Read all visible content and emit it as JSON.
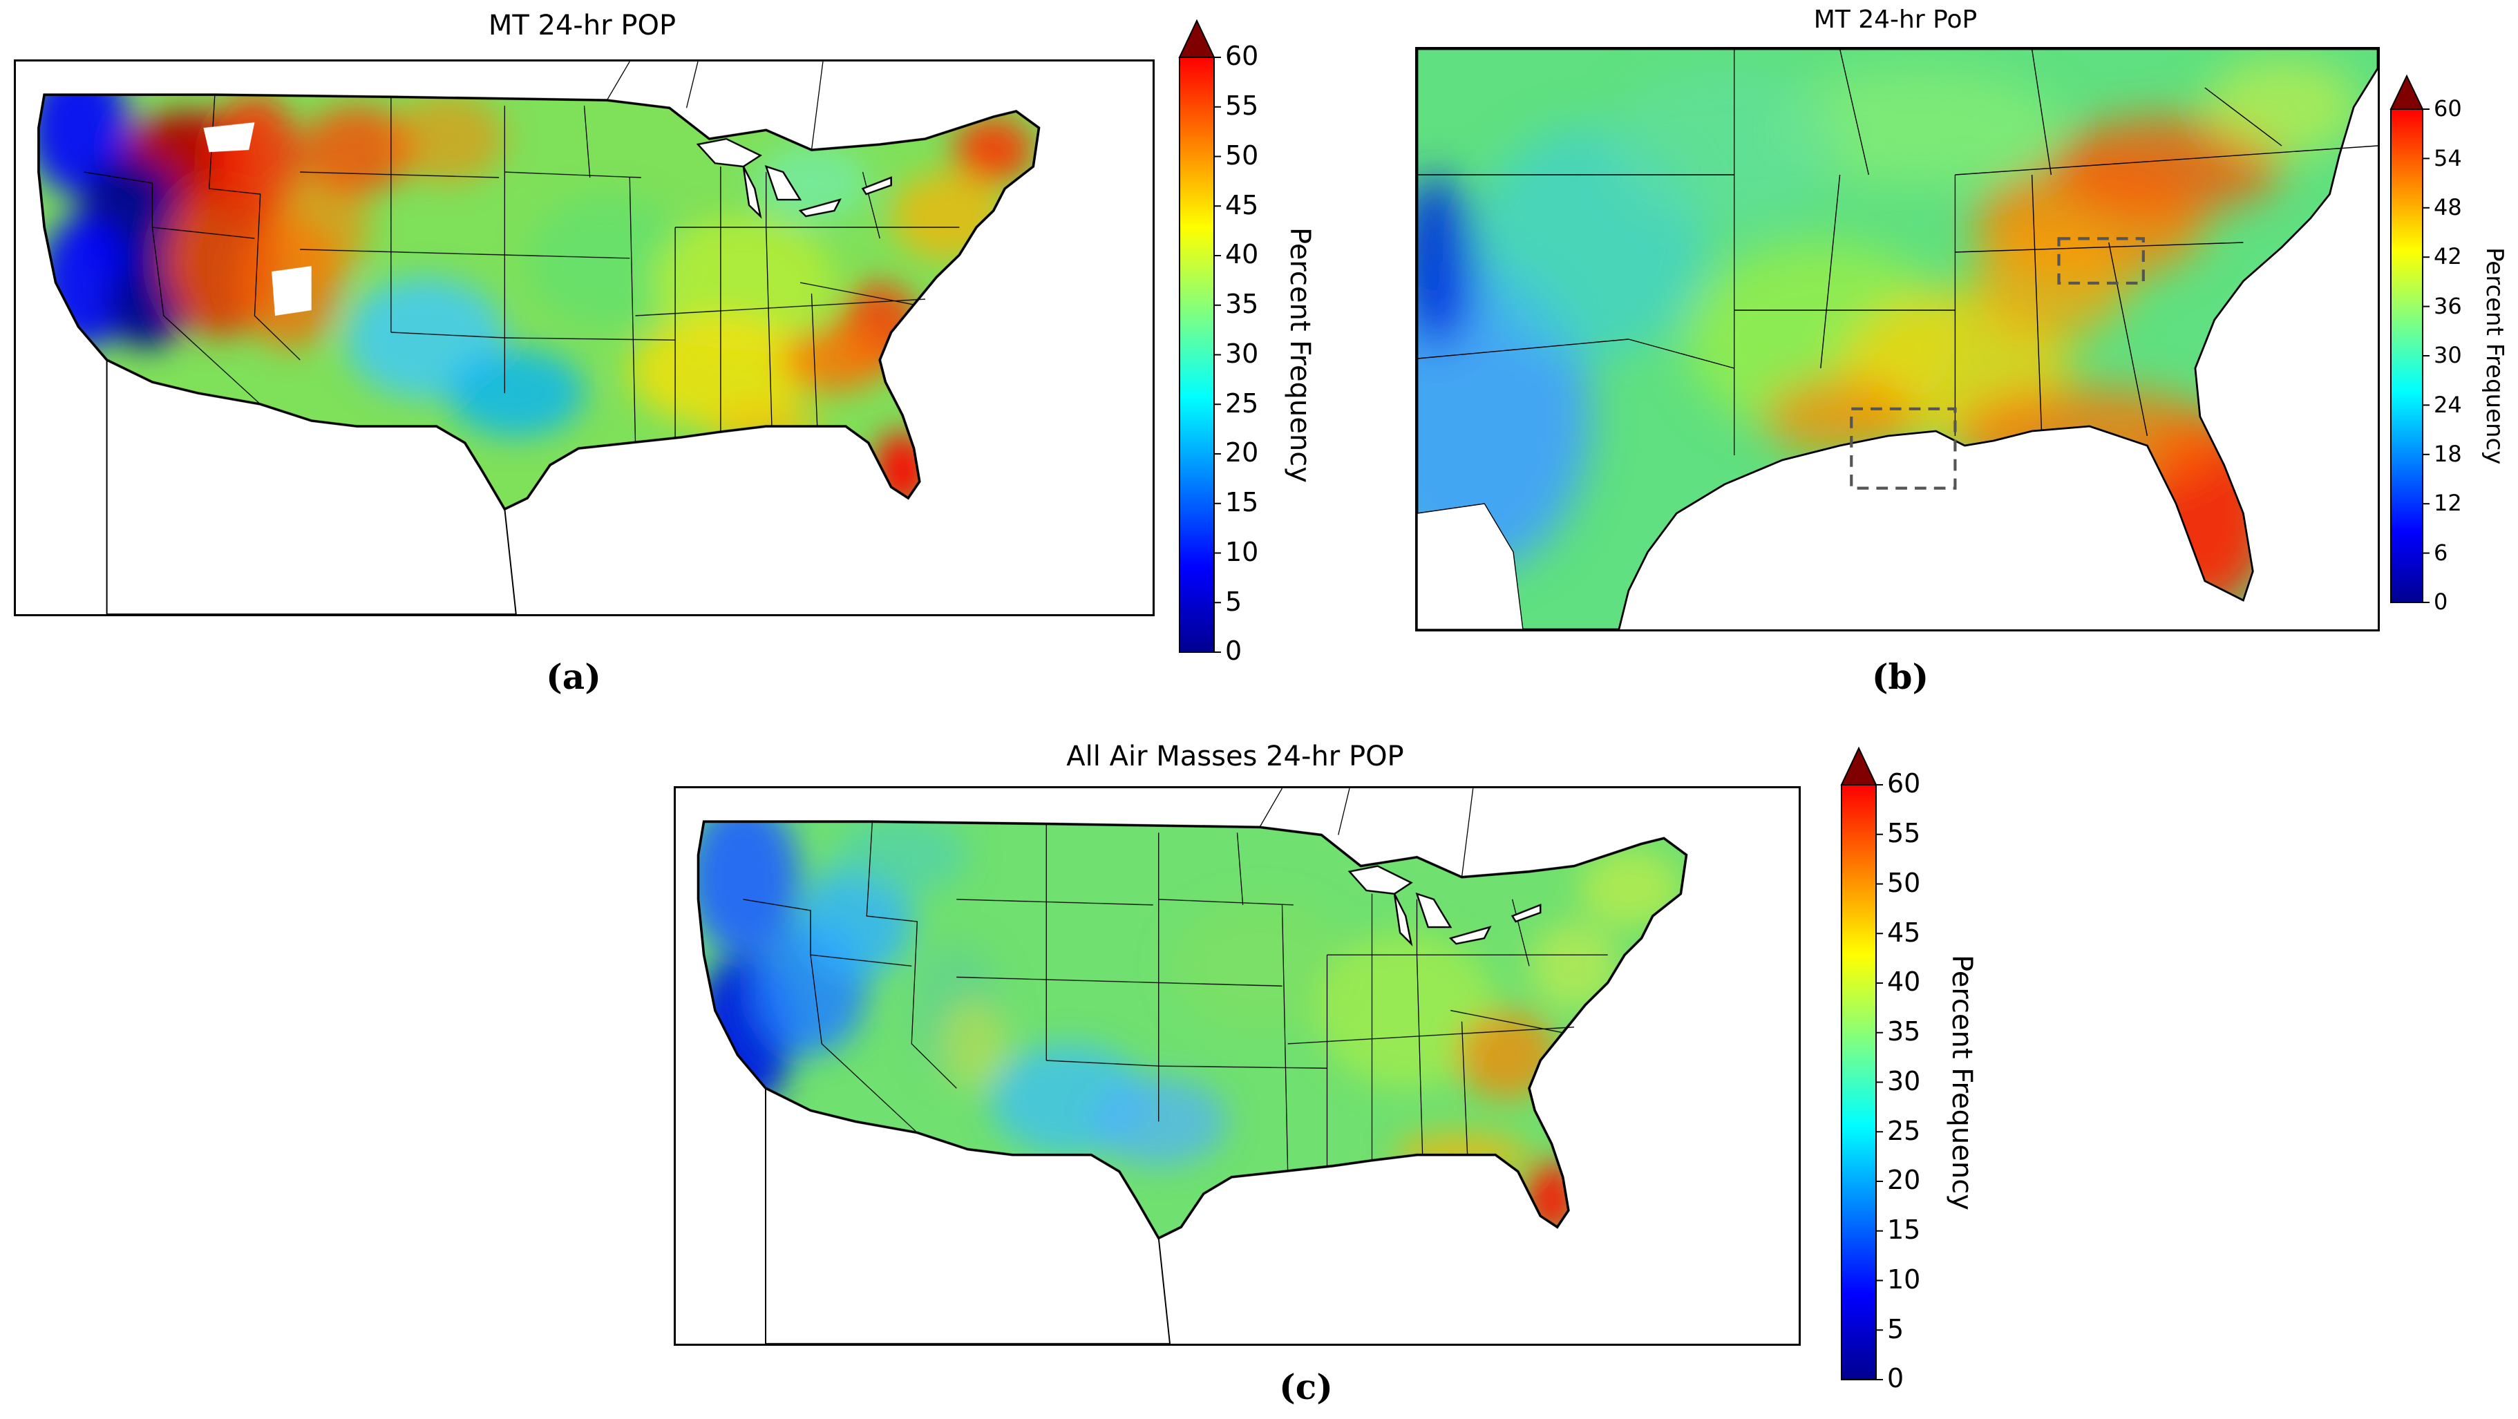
{
  "figure": {
    "colorbar_label": "Percent Frequency",
    "colors": {
      "scale": [
        "#00008f",
        "#0000ff",
        "#0080ff",
        "#00ffff",
        "#80ff80",
        "#ffff00",
        "#ff8000",
        "#ff0000",
        "#800000"
      ],
      "border": "#000000",
      "box": "#555555"
    }
  },
  "panels": [
    {
      "id": "a",
      "label": "(a)",
      "title": "MT 24-hr POP",
      "region": "contiguous-us",
      "colorbar": {
        "min": 0,
        "max": 60,
        "ticks": [
          "0",
          "5",
          "10",
          "15",
          "20",
          "25",
          "30",
          "35",
          "40",
          "45",
          "50",
          "55",
          "60"
        ],
        "extend": "max"
      }
    },
    {
      "id": "b",
      "label": "(b)",
      "title": "MT 24-hr PoP",
      "region": "southeast-us",
      "colorbar": {
        "min": 0,
        "max": 60,
        "ticks": [
          "0",
          "6",
          "12",
          "18",
          "24",
          "30",
          "36",
          "42",
          "48",
          "54",
          "60"
        ],
        "extend": "max"
      }
    },
    {
      "id": "c",
      "label": "(c)",
      "title": "All Air Masses 24-hr POP",
      "region": "contiguous-us",
      "colorbar": {
        "min": 0,
        "max": 60,
        "ticks": [
          "0",
          "5",
          "10",
          "15",
          "20",
          "25",
          "30",
          "35",
          "40",
          "45",
          "50",
          "55",
          "60"
        ],
        "extend": "max"
      }
    }
  ]
}
